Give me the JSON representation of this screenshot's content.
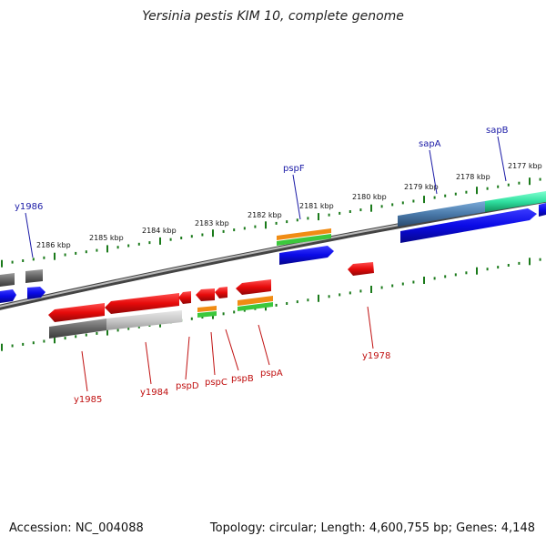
{
  "title": "Yersinia pestis KIM 10, complete genome",
  "footer": {
    "accession": "Accession: NC_004088",
    "summary": "Topology: circular; Length: 4,600,755 bp; Genes: 4,148"
  },
  "kbp_labels": [
    "2186 kbp",
    "2185 kbp",
    "2184 kbp",
    "2183 kbp",
    "2182 kbp",
    "2181 kbp",
    "2180 kbp",
    "2179 kbp",
    "2178 kbp",
    "2177 kbp"
  ],
  "genes_top": [
    "y1986",
    "pspF",
    "sapA",
    "sapB"
  ],
  "genes_bottom": [
    "y1985",
    "y1984",
    "pspD",
    "pspC",
    "pspB",
    "pspA",
    "y1978"
  ],
  "colors": {
    "forward_gene": "#0a0ae6",
    "reverse_gene": "#e60a0a",
    "pseudo_gray": "#666666",
    "tick": "#1a7a1a",
    "orange": "#f08c14",
    "green": "#3cc83c",
    "steel": "#4a7aaa",
    "teal": "#30e0a0"
  }
}
